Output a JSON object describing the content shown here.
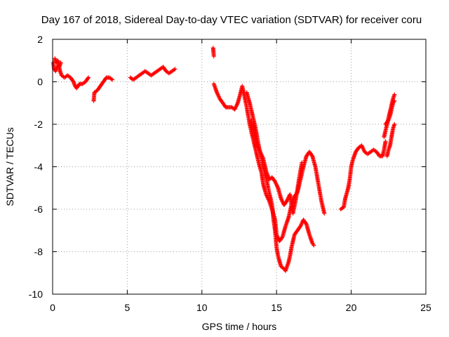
{
  "chart_data": {
    "type": "scatter",
    "title": "Day 167 of 2018, Sidereal Day-to-day VTEC variation (SDTVAR) for receiver coru",
    "xlabel": "GPS time / hours",
    "ylabel": "SDTVAR / TECUs",
    "xlim": [
      0,
      25
    ],
    "ylim": [
      -10,
      2
    ],
    "xticks": [
      0,
      5,
      10,
      15,
      20,
      25
    ],
    "yticks": [
      -10,
      -8,
      -6,
      -4,
      -2,
      0,
      2
    ],
    "xtick_labels": [
      "0",
      "5",
      "10",
      "15",
      "20",
      "25"
    ],
    "ytick_labels": [
      "-10",
      "-8",
      "-6",
      "-4",
      "-2",
      "0",
      "2"
    ],
    "grid": true,
    "marker": "+",
    "series_color": "#ff0000",
    "segments": [
      [
        [
          0.05,
          0.9
        ],
        [
          0.1,
          0.6
        ],
        [
          0.2,
          0.5
        ],
        [
          0.3,
          0.7
        ],
        [
          0.4,
          0.8
        ],
        [
          0.5,
          0.5
        ],
        [
          0.6,
          0.3
        ],
        [
          0.8,
          0.2
        ],
        [
          1.0,
          0.3
        ],
        [
          1.2,
          0.2
        ],
        [
          1.4,
          0.0
        ],
        [
          1.5,
          -0.2
        ],
        [
          1.6,
          -0.3
        ],
        [
          1.8,
          -0.1
        ],
        [
          2.0,
          -0.1
        ],
        [
          2.2,
          0.0
        ],
        [
          2.4,
          0.2
        ]
      ],
      [
        [
          0.15,
          1.1
        ],
        [
          0.25,
          0.9
        ],
        [
          0.35,
          1.0
        ],
        [
          0.45,
          0.7
        ],
        [
          0.55,
          0.9
        ]
      ],
      [
        [
          2.75,
          -0.9
        ],
        [
          2.8,
          -0.5
        ],
        [
          3.0,
          -0.4
        ],
        [
          3.2,
          -0.2
        ],
        [
          3.4,
          0.0
        ],
        [
          3.6,
          0.2
        ],
        [
          3.8,
          0.2
        ],
        [
          4.0,
          0.1
        ]
      ],
      [
        [
          5.2,
          0.2
        ],
        [
          5.4,
          0.1
        ],
        [
          5.6,
          0.2
        ],
        [
          5.8,
          0.3
        ],
        [
          6.0,
          0.4
        ],
        [
          6.2,
          0.5
        ],
        [
          6.4,
          0.4
        ],
        [
          6.6,
          0.3
        ],
        [
          6.8,
          0.4
        ],
        [
          7.0,
          0.5
        ],
        [
          7.2,
          0.6
        ],
        [
          7.4,
          0.7
        ],
        [
          7.6,
          0.5
        ],
        [
          7.8,
          0.4
        ],
        [
          8.0,
          0.5
        ],
        [
          8.2,
          0.6
        ]
      ],
      [
        [
          10.75,
          1.6
        ],
        [
          10.8,
          1.2
        ]
      ],
      [
        [
          10.8,
          -0.1
        ],
        [
          11.0,
          -0.5
        ],
        [
          11.2,
          -0.8
        ],
        [
          11.4,
          -1.0
        ],
        [
          11.6,
          -1.2
        ],
        [
          11.8,
          -1.2
        ],
        [
          12.0,
          -1.2
        ],
        [
          12.2,
          -1.3
        ],
        [
          12.4,
          -1.0
        ],
        [
          12.6,
          -0.5
        ],
        [
          12.7,
          -0.2
        ],
        [
          12.8,
          -0.5
        ],
        [
          13.0,
          -1.2
        ],
        [
          13.2,
          -2.0
        ],
        [
          13.4,
          -2.6
        ],
        [
          13.6,
          -3.2
        ],
        [
          13.8,
          -3.8
        ],
        [
          14.0,
          -4.3
        ],
        [
          14.1,
          -4.8
        ],
        [
          14.3,
          -5.3
        ],
        [
          14.5,
          -5.6
        ],
        [
          14.7,
          -6.0
        ],
        [
          14.9,
          -6.5
        ],
        [
          15.0,
          -7.2
        ],
        [
          15.2,
          -7.5
        ],
        [
          15.4,
          -7.3
        ],
        [
          15.6,
          -6.8
        ],
        [
          15.8,
          -6.4
        ],
        [
          16.0,
          -5.8
        ],
        [
          16.2,
          -5.4
        ],
        [
          16.4,
          -5.2
        ],
        [
          16.6,
          -4.6
        ],
        [
          16.8,
          -4.0
        ],
        [
          17.0,
          -3.5
        ],
        [
          17.2,
          -3.3
        ],
        [
          17.4,
          -3.5
        ],
        [
          17.6,
          -4.0
        ],
        [
          17.8,
          -4.8
        ],
        [
          18.0,
          -5.6
        ],
        [
          18.2,
          -6.2
        ]
      ],
      [
        [
          13.0,
          -0.5
        ],
        [
          13.2,
          -1.0
        ],
        [
          13.4,
          -1.6
        ],
        [
          13.6,
          -2.2
        ],
        [
          13.8,
          -3.0
        ],
        [
          14.0,
          -3.6
        ],
        [
          14.1,
          -4.0
        ],
        [
          14.3,
          -4.5
        ],
        [
          14.5,
          -5.2
        ],
        [
          14.7,
          -5.8
        ],
        [
          14.8,
          -6.5
        ],
        [
          14.9,
          -7.0
        ],
        [
          15.0,
          -7.8
        ],
        [
          15.1,
          -8.2
        ],
        [
          15.3,
          -8.7
        ],
        [
          15.5,
          -8.8
        ],
        [
          15.6,
          -8.9
        ],
        [
          15.8,
          -8.5
        ],
        [
          15.9,
          -8.2
        ],
        [
          16.0,
          -7.8
        ],
        [
          16.2,
          -7.2
        ],
        [
          16.4,
          -7.0
        ],
        [
          16.6,
          -6.8
        ],
        [
          16.8,
          -6.5
        ],
        [
          17.0,
          -6.7
        ],
        [
          17.2,
          -7.2
        ],
        [
          17.4,
          -7.6
        ],
        [
          17.5,
          -7.7
        ]
      ],
      [
        [
          13.3,
          -1.8
        ],
        [
          13.5,
          -2.5
        ],
        [
          13.7,
          -3.0
        ],
        [
          13.9,
          -3.3
        ],
        [
          14.1,
          -3.6
        ],
        [
          14.3,
          -4.2
        ],
        [
          14.5,
          -4.6
        ],
        [
          14.7,
          -4.5
        ],
        [
          14.9,
          -4.7
        ],
        [
          15.1,
          -5.0
        ],
        [
          15.3,
          -5.5
        ],
        [
          15.5,
          -5.8
        ],
        [
          15.7,
          -5.6
        ],
        [
          15.9,
          -5.3
        ],
        [
          16.0,
          -5.8
        ],
        [
          16.1,
          -6.2
        ],
        [
          16.3,
          -5.5
        ],
        [
          16.5,
          -4.6
        ],
        [
          16.7,
          -3.8
        ]
      ],
      [
        [
          19.3,
          -6.0
        ],
        [
          19.5,
          -5.9
        ],
        [
          19.6,
          -5.5
        ],
        [
          19.8,
          -5.0
        ],
        [
          19.9,
          -4.6
        ],
        [
          20.0,
          -4.0
        ],
        [
          20.1,
          -3.7
        ],
        [
          20.3,
          -3.3
        ],
        [
          20.5,
          -3.1
        ],
        [
          20.7,
          -3.0
        ],
        [
          20.9,
          -3.3
        ],
        [
          21.1,
          -3.4
        ],
        [
          21.3,
          -3.3
        ],
        [
          21.5,
          -3.2
        ],
        [
          21.7,
          -3.3
        ],
        [
          21.9,
          -3.5
        ],
        [
          22.1,
          -3.5
        ],
        [
          22.2,
          -3.2
        ],
        [
          22.3,
          -2.8
        ]
      ],
      [
        [
          22.2,
          -2.6
        ],
        [
          22.3,
          -2.3
        ],
        [
          22.4,
          -2.0
        ],
        [
          22.5,
          -1.7
        ],
        [
          22.6,
          -1.4
        ],
        [
          22.7,
          -1.1
        ],
        [
          22.8,
          -0.8
        ],
        [
          22.9,
          -0.6
        ]
      ],
      [
        [
          22.4,
          -3.5
        ],
        [
          22.5,
          -3.2
        ],
        [
          22.6,
          -3.0
        ],
        [
          22.7,
          -2.6
        ],
        [
          22.8,
          -2.2
        ],
        [
          22.9,
          -2.0
        ]
      ],
      [
        [
          22.3,
          -2.0
        ],
        [
          22.5,
          -1.8
        ],
        [
          22.6,
          -1.6
        ],
        [
          22.7,
          -1.3
        ],
        [
          22.8,
          -1.0
        ],
        [
          22.9,
          -0.9
        ]
      ]
    ]
  }
}
